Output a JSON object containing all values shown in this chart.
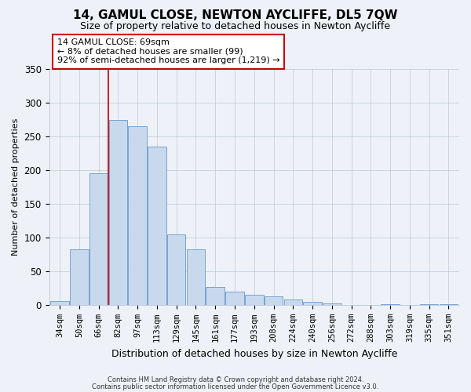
{
  "title": "14, GAMUL CLOSE, NEWTON AYCLIFFE, DL5 7QW",
  "subtitle": "Size of property relative to detached houses in Newton Aycliffe",
  "xlabel": "Distribution of detached houses by size in Newton Aycliffe",
  "ylabel": "Number of detached properties",
  "bar_labels": [
    "34sqm",
    "50sqm",
    "66sqm",
    "82sqm",
    "97sqm",
    "113sqm",
    "129sqm",
    "145sqm",
    "161sqm",
    "177sqm",
    "193sqm",
    "208sqm",
    "224sqm",
    "240sqm",
    "256sqm",
    "272sqm",
    "288sqm",
    "303sqm",
    "319sqm",
    "335sqm",
    "351sqm"
  ],
  "bar_values": [
    6,
    83,
    195,
    275,
    265,
    235,
    105,
    83,
    27,
    20,
    15,
    13,
    8,
    5,
    2,
    0,
    0,
    1,
    0,
    1,
    1
  ],
  "bar_color": "#c9d9ed",
  "bar_edge_color": "#6699cc",
  "annotation_title": "14 GAMUL CLOSE: 69sqm",
  "annotation_line1": "← 8% of detached houses are smaller (99)",
  "annotation_line2": "92% of semi-detached houses are larger (1,219) →",
  "vline_color": "#bb0000",
  "ylim": [
    0,
    350
  ],
  "yticks": [
    0,
    50,
    100,
    150,
    200,
    250,
    300,
    350
  ],
  "footnote1": "Contains HM Land Registry data © Crown copyright and database right 2024.",
  "footnote2": "Contains public sector information licensed under the Open Government Licence v3.0.",
  "background_color": "#eef2f8",
  "plot_bg_color": "#eef2f8",
  "title_fontsize": 11,
  "subtitle_fontsize": 9
}
